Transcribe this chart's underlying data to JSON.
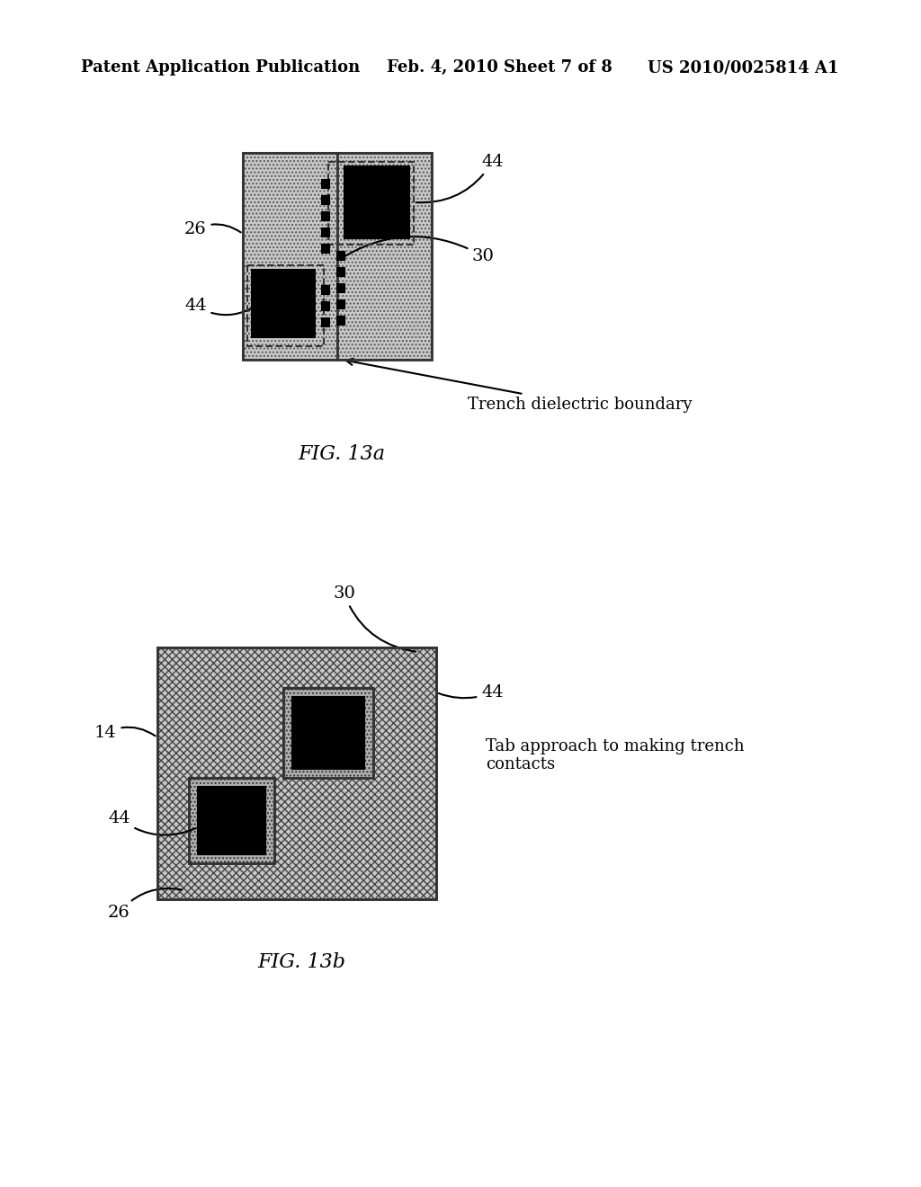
{
  "bg_color": "#ffffff",
  "header_text": "Patent Application Publication",
  "header_date": "Feb. 4, 2010",
  "header_sheet": "Sheet 7 of 8",
  "header_patent": "US 2010/0025814 A1",
  "fig13a_label": "FIG. 13a",
  "fig13b_label": "FIG. 13b",
  "hatch_color": "#aaaaaa",
  "dark_fill": "#111111",
  "light_gray": "#c8c8c8"
}
